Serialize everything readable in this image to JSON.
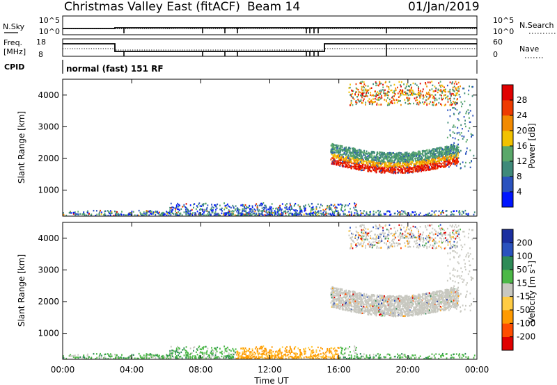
{
  "header": {
    "station": "Christmas Valley East (fitACF)",
    "beam": "Beam 14",
    "date": "01/Jan/2019"
  },
  "noise_panel": {
    "left_label": "N.Sky",
    "right_label": "N.Search",
    "y_ticks_left": [
      "10^5",
      "10^0"
    ],
    "y_ticks_right": [
      "10^5",
      "10^0"
    ]
  },
  "freq_panel": {
    "left_label_line1": "Freq.",
    "left_label_line2": "[MHz]",
    "right_label": "Nave",
    "y_ticks_left": [
      "18",
      "8"
    ],
    "y_ticks_right": [
      "60",
      "0"
    ]
  },
  "cpid": {
    "label": "CPID",
    "text": "normal (fast) 151 RF"
  },
  "colors": {
    "power_scale": [
      "#0015ff",
      "#2a52be",
      "#3f8a7a",
      "#5aa86a",
      "#f2c200",
      "#f28a00",
      "#ee3b00",
      "#e00000"
    ],
    "velocity_scale": [
      "#e00000",
      "#ff4d00",
      "#ff9a00",
      "#ffcc44",
      "#c8c8c0",
      "#4cb847",
      "#2e8b57",
      "#2a52be",
      "#1b2fa0"
    ]
  },
  "chart_data": [
    {
      "type": "heatmap",
      "name": "power",
      "ylabel": "Slant Range [km]",
      "y_ticks": [
        1000,
        2000,
        3000,
        4000
      ],
      "ylim": [
        180,
        4500
      ],
      "colorbar_label": "Power [dB]",
      "colorbar_ticks": [
        4,
        8,
        12,
        16,
        20,
        24,
        28
      ],
      "colorbar_range": [
        0,
        32
      ]
    },
    {
      "type": "heatmap",
      "name": "velocity",
      "ylabel": "Slant Range [km]",
      "y_ticks": [
        1000,
        2000,
        3000,
        4000
      ],
      "ylim": [
        180,
        4500
      ],
      "colorbar_label": "Velocity [m s^-1]",
      "colorbar_ticks": [
        200,
        100,
        50,
        15,
        -15,
        -50,
        -100,
        -200
      ]
    }
  ],
  "time_axis": {
    "label": "Time UT",
    "ticks": [
      "00:00",
      "04:00",
      "08:00",
      "12:00",
      "16:00",
      "20:00",
      "00:00"
    ]
  }
}
